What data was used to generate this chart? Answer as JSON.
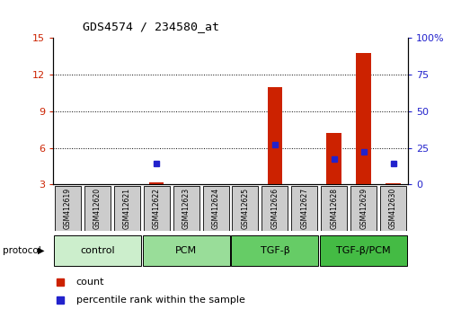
{
  "title": "GDS4574 / 234580_at",
  "samples": [
    "GSM412619",
    "GSM412620",
    "GSM412621",
    "GSM412622",
    "GSM412623",
    "GSM412624",
    "GSM412625",
    "GSM412626",
    "GSM412627",
    "GSM412628",
    "GSM412629",
    "GSM412630"
  ],
  "count_values": [
    null,
    null,
    null,
    3.2,
    null,
    null,
    null,
    11.0,
    null,
    7.2,
    13.8,
    3.1
  ],
  "percentile_values": [
    null,
    null,
    null,
    4.7,
    null,
    null,
    null,
    6.3,
    null,
    5.1,
    5.7,
    4.7
  ],
  "ylim_left": [
    3,
    15
  ],
  "yticks_left": [
    3,
    6,
    9,
    12,
    15
  ],
  "yticks_right": [
    0,
    25,
    50,
    75,
    100
  ],
  "ylim_right": [
    0,
    100
  ],
  "bar_color": "#cc2200",
  "dot_color": "#2222cc",
  "groups": [
    {
      "label": "control",
      "start": 0,
      "end": 3,
      "color": "#cceecc"
    },
    {
      "label": "PCM",
      "start": 3,
      "end": 6,
      "color": "#99dd99"
    },
    {
      "label": "TGF-β",
      "start": 6,
      "end": 9,
      "color": "#66cc66"
    },
    {
      "label": "TGF-β/PCM",
      "start": 9,
      "end": 12,
      "color": "#44bb44"
    }
  ],
  "protocol_label": "protocol",
  "legend_count_label": "count",
  "legend_pct_label": "percentile rank within the sample",
  "background_color": "#ffffff",
  "tick_label_color_left": "#cc2200",
  "tick_label_color_right": "#2222cc",
  "grid_ticks": [
    6,
    9,
    12
  ],
  "sample_box_color": "#cccccc"
}
